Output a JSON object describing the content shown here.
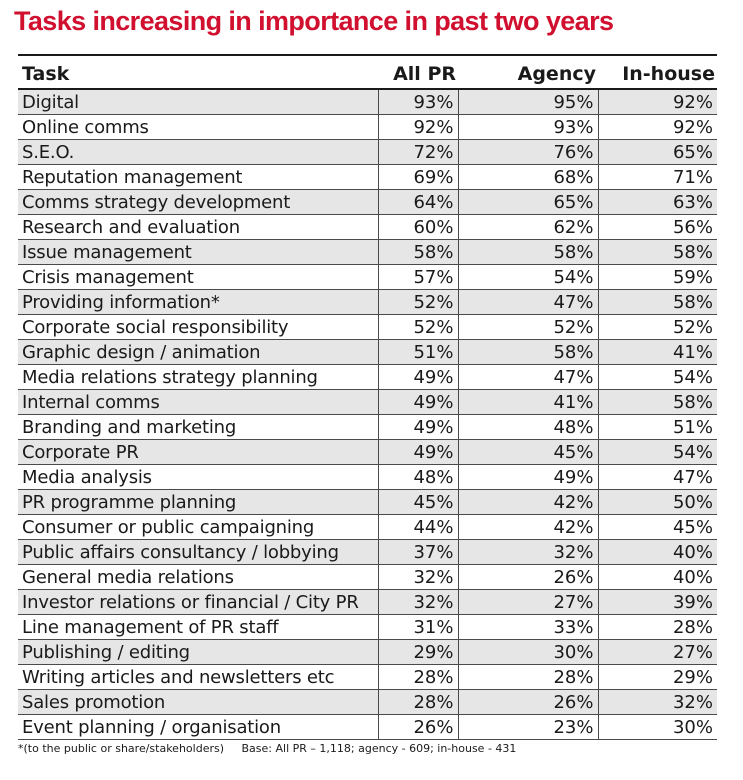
{
  "chart_data": {
    "type": "table",
    "title": "Tasks increasing in importance in past two years",
    "columns": [
      "Task",
      "All PR",
      "Agency",
      "In-house"
    ],
    "rows": [
      {
        "task": "Digital",
        "all_pr": "93%",
        "agency": "95%",
        "in_house": "92%"
      },
      {
        "task": "Online comms",
        "all_pr": "92%",
        "agency": "93%",
        "in_house": "92%"
      },
      {
        "task": "S.E.O.",
        "all_pr": "72%",
        "agency": "76%",
        "in_house": "65%"
      },
      {
        "task": "Reputation management",
        "all_pr": "69%",
        "agency": "68%",
        "in_house": "71%"
      },
      {
        "task": "Comms strategy development",
        "all_pr": "64%",
        "agency": "65%",
        "in_house": "63%"
      },
      {
        "task": "Research and evaluation",
        "all_pr": "60%",
        "agency": "62%",
        "in_house": "56%"
      },
      {
        "task": "Issue management",
        "all_pr": "58%",
        "agency": "58%",
        "in_house": "58%"
      },
      {
        "task": "Crisis management",
        "all_pr": "57%",
        "agency": "54%",
        "in_house": "59%"
      },
      {
        "task": "Providing information*",
        "all_pr": "52%",
        "agency": "47%",
        "in_house": "58%"
      },
      {
        "task": "Corporate social responsibility",
        "all_pr": "52%",
        "agency": "52%",
        "in_house": "52%"
      },
      {
        "task": "Graphic design / animation",
        "all_pr": "51%",
        "agency": "58%",
        "in_house": "41%"
      },
      {
        "task": "Media relations strategy planning",
        "all_pr": "49%",
        "agency": "47%",
        "in_house": "54%"
      },
      {
        "task": "Internal comms",
        "all_pr": "49%",
        "agency": "41%",
        "in_house": "58%"
      },
      {
        "task": "Branding and marketing",
        "all_pr": "49%",
        "agency": "48%",
        "in_house": "51%"
      },
      {
        "task": "Corporate PR",
        "all_pr": "49%",
        "agency": "45%",
        "in_house": "54%"
      },
      {
        "task": "Media analysis",
        "all_pr": "48%",
        "agency": "49%",
        "in_house": "47%"
      },
      {
        "task": "PR programme planning",
        "all_pr": "45%",
        "agency": "42%",
        "in_house": "50%"
      },
      {
        "task": "Consumer or public campaigning",
        "all_pr": "44%",
        "agency": "42%",
        "in_house": "45%"
      },
      {
        "task": "Public affairs consultancy / lobbying",
        "all_pr": "37%",
        "agency": "32%",
        "in_house": "40%"
      },
      {
        "task": "General media relations",
        "all_pr": "32%",
        "agency": "26%",
        "in_house": "40%"
      },
      {
        "task": "Investor relations or financial / City PR",
        "all_pr": "32%",
        "agency": "27%",
        "in_house": "39%"
      },
      {
        "task": "Line management of PR staff",
        "all_pr": "31%",
        "agency": "33%",
        "in_house": "28%"
      },
      {
        "task": "Publishing / editing",
        "all_pr": "29%",
        "agency": "30%",
        "in_house": "27%"
      },
      {
        "task": "Writing articles and newsletters etc",
        "all_pr": "28%",
        "agency": "28%",
        "in_house": "29%"
      },
      {
        "task": "Sales promotion",
        "all_pr": "28%",
        "agency": "26%",
        "in_house": "32%"
      },
      {
        "task": "Event planning / organisation",
        "all_pr": "26%",
        "agency": "23%",
        "in_house": "30%"
      }
    ],
    "footnote": "*(to the public or share/stakeholders)",
    "base_note": "Base: All PR – 1,118; agency - 609; in-house - 431"
  },
  "colors": {
    "title": "#d0102e",
    "stripe": "#e6e6e6",
    "text": "#1a1a1a"
  }
}
